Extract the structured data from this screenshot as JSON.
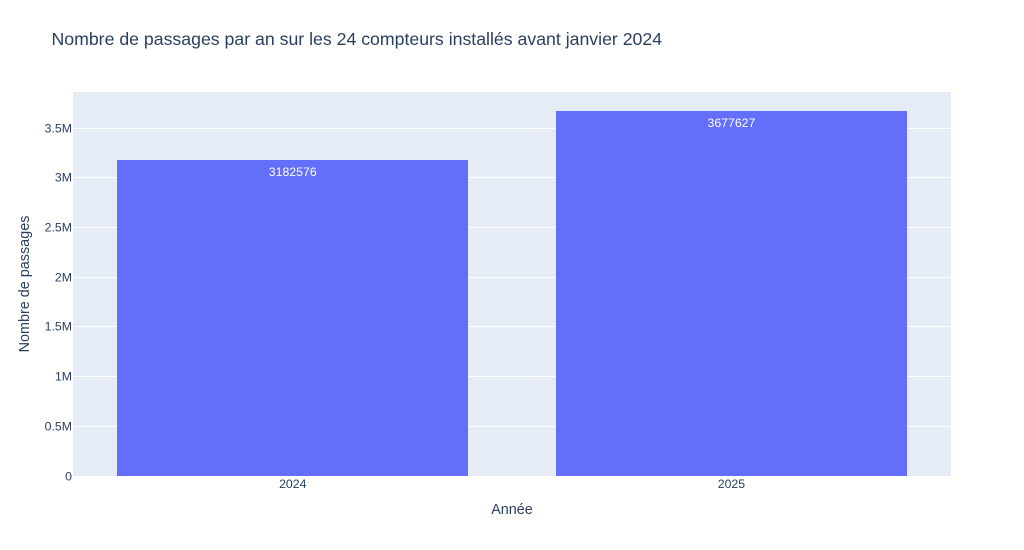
{
  "title": "Nombre de passages par an sur les 24 compteurs installés avant janvier 2024",
  "colors": {
    "bar": "#636EFA",
    "plot_background": "#E5ECF6",
    "paper_background": "#FFFFFF",
    "text": "#2a3f5f",
    "gridline": "#FFFFFF",
    "bar_label_text": "#FFFFFF"
  },
  "chart_data": {
    "type": "bar",
    "title": "Nombre de passages par an sur les 24 compteurs installés avant janvier 2024",
    "xlabel": "Année",
    "ylabel": "Nombre de passages",
    "categories": [
      "2024",
      "2025"
    ],
    "values": [
      3182576,
      3677627
    ],
    "bar_labels": [
      "3182576",
      "3677627"
    ],
    "ylim": [
      0,
      3865500
    ],
    "ytick_step": 500000,
    "yticks": [
      {
        "value": 0,
        "label": "0"
      },
      {
        "value": 500000,
        "label": "0.5M"
      },
      {
        "value": 1000000,
        "label": "1M"
      },
      {
        "value": 1500000,
        "label": "1.5M"
      },
      {
        "value": 2000000,
        "label": "2M"
      },
      {
        "value": 2500000,
        "label": "2.5M"
      },
      {
        "value": 3000000,
        "label": "3M"
      },
      {
        "value": 3500000,
        "label": "3.5M"
      }
    ],
    "grid": true,
    "legend": false,
    "bar_width_fraction": 0.8
  }
}
